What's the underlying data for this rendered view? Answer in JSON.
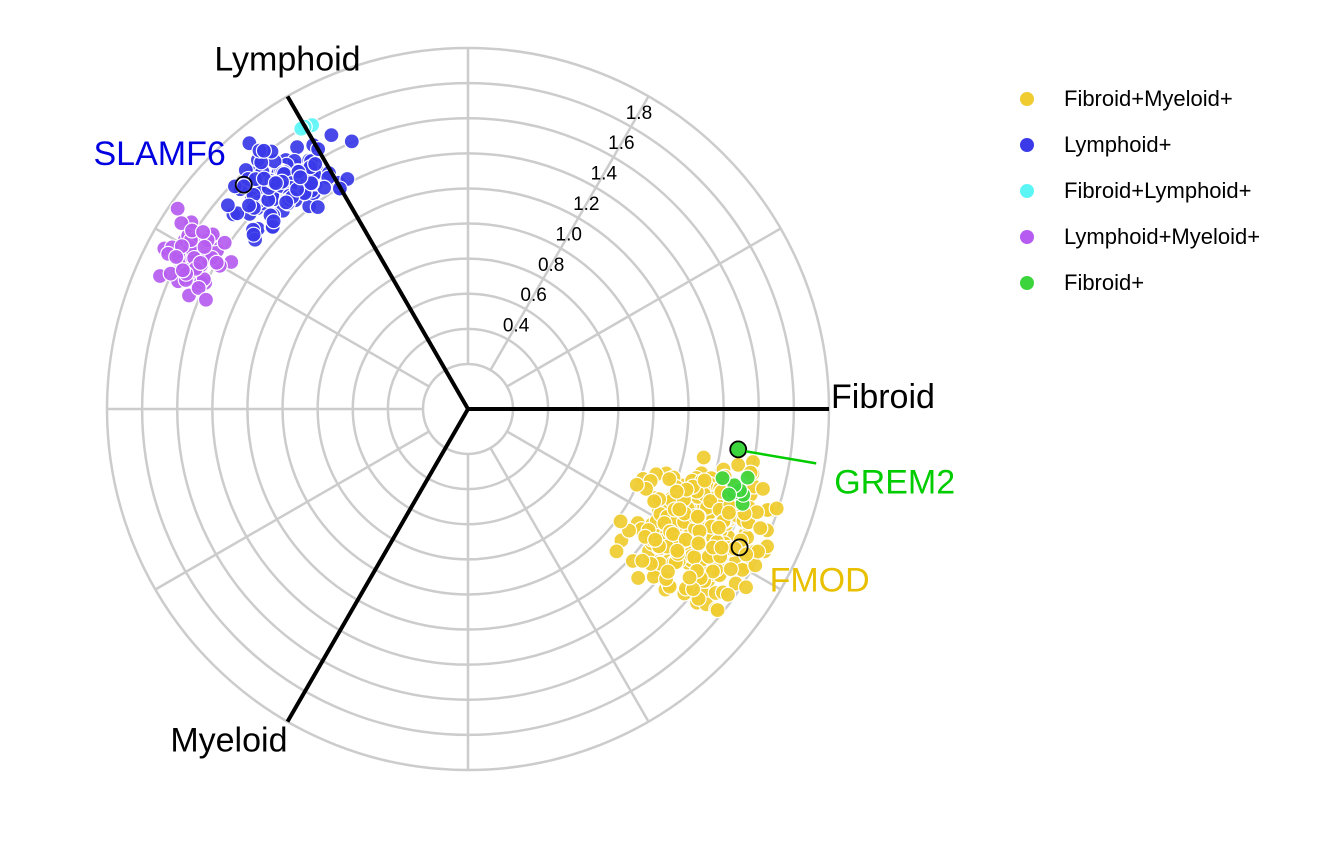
{
  "chart_data": {
    "type": "scatter",
    "coordinate_system": "polar",
    "r_ticks": [
      "0.4",
      "0.6",
      "0.8",
      "1.0",
      "1.2",
      "1.4",
      "1.6",
      "1.8"
    ],
    "r_range": [
      0.2,
      2.0
    ],
    "axes": [
      {
        "name": "Lymphoid",
        "angle_deg": 120
      },
      {
        "name": "Fibroid",
        "angle_deg": 0
      },
      {
        "name": "Myeloid",
        "angle_deg": 240
      }
    ],
    "grid": true,
    "legend_position": "right",
    "series": [
      {
        "name": "Fibroid+Myeloid+",
        "color": "#f0cc30"
      },
      {
        "name": "Lymphoid+",
        "color": "#3a3ae8"
      },
      {
        "name": "Fibroid+Lymphoid+",
        "color": "#5cf5f5"
      },
      {
        "name": "Lymphoid+Myeloid+",
        "color": "#b65cf0"
      },
      {
        "name": "Fibroid+",
        "color": "#3cd43c"
      }
    ],
    "clusters": [
      {
        "series": "Lymphoid+",
        "n": 130,
        "angle_deg": [
          112,
          146
        ],
        "r": [
          1.25,
          1.92
        ],
        "seed": 11
      },
      {
        "series": "Lymphoid+Myeloid+",
        "n": 70,
        "angle_deg": [
          141,
          162
        ],
        "r": [
          1.5,
          1.97
        ],
        "seed": 23
      },
      {
        "series": "Fibroid+Lymphoid+",
        "n": 3,
        "angle_deg": [
          118,
          124
        ],
        "r": [
          1.75,
          1.82
        ],
        "seed": 31
      },
      {
        "series": "Fibroid+Myeloid+",
        "n": 340,
        "angle_deg": [
          -48,
          -8
        ],
        "r": [
          0.95,
          1.93
        ],
        "seed": 41
      },
      {
        "series": "Fibroid+",
        "n": 8,
        "angle_deg": [
          -21,
          -8
        ],
        "r": [
          1.35,
          1.82
        ],
        "seed": 53
      }
    ],
    "highlighted_genes": [
      {
        "gene": "SLAMF6",
        "series": "Lymphoid+",
        "angle_deg": 135,
        "r": 1.75,
        "color": "#0000e0"
      },
      {
        "gene": "GREM2",
        "series": "Fibroid+",
        "angle_deg": -8.5,
        "r": 1.5,
        "color": "#00cc00"
      },
      {
        "gene": "FMOD",
        "series": "Fibroid+Myeloid+",
        "angle_deg": -27,
        "r": 1.68,
        "color": "#e8c000"
      }
    ]
  }
}
